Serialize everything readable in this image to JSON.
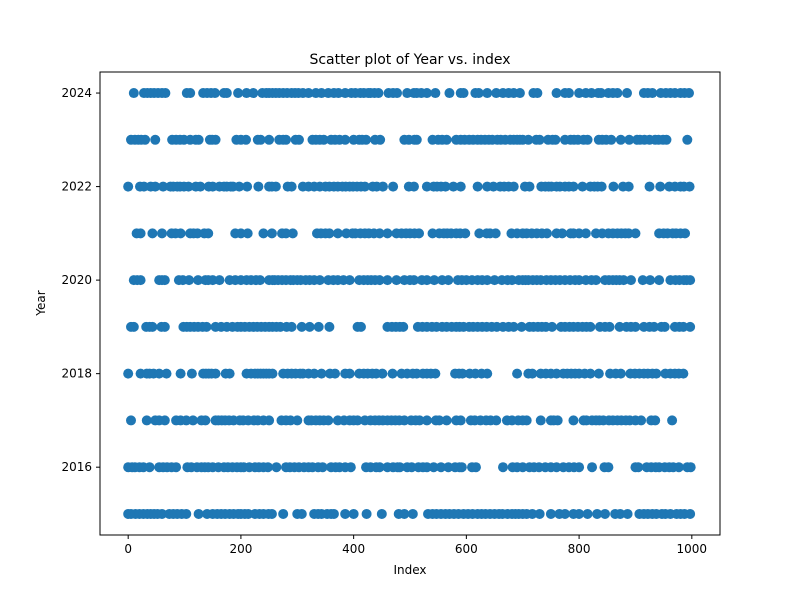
{
  "chart_data": {
    "type": "scatter",
    "title": "Scatter plot of Year vs. index",
    "xlabel": "Index",
    "ylabel": "Year",
    "xlim": [
      -50,
      1050
    ],
    "ylim": [
      2014.55,
      2024.45
    ],
    "x_ticks": [
      0,
      200,
      400,
      600,
      800,
      1000
    ],
    "y_ticks": [
      2016,
      2018,
      2020,
      2022,
      2024
    ],
    "grid": false,
    "legend": "none",
    "marker_color": "#1f77b4",
    "series": [
      {
        "points": [
          {
            "y": 2024,
            "x": [
              10,
              28,
              34,
              40,
              46,
              53,
              60,
              66,
              104,
              110,
              133,
              140,
              147,
              154,
              170,
              175,
              195,
              210,
              222,
              238,
              245,
              250,
              256,
              262,
              268,
              275,
              282,
              290,
              296,
              302,
              310,
              320,
              333,
              343,
              355,
              365,
              373,
              385,
              396,
              403,
              412,
              418,
              426,
              430,
              437,
              444,
              462,
              470,
              477,
              495,
              507,
              512,
              520,
              530,
              545,
              570,
              590,
              595,
              616,
              622,
              637,
              653,
              665,
              675,
              684,
              695,
              719,
              726,
              760,
              775,
              782,
              800,
              812,
              822,
              834,
              839,
              852,
              860,
              868,
              885,
              915,
              922,
              930,
              945,
              954,
              962,
              970,
              980,
              987,
              995
            ]
          },
          {
            "y": 2023,
            "x": [
              5,
              12,
              18,
              23,
              30,
              48,
              78,
              85,
              92,
              99,
              110,
              120,
              125,
              145,
              149,
              155,
              192,
              200,
              209,
              230,
              235,
              250,
              268,
              275,
              280,
              297,
              303,
              327,
              333,
              340,
              347,
              360,
              367,
              375,
              385,
              400,
              410,
              415,
              422,
              438,
              447,
              490,
              498,
              508,
              512,
              540,
              550,
              557,
              565,
              582,
              590,
              597,
              605,
              612,
              620,
              626,
              633,
              640,
              646,
              655,
              661,
              669,
              678,
              684,
              690,
              695,
              700,
              710,
              724,
              730,
              745,
              753,
              758,
              775,
              785,
              791,
              798,
              808,
              815,
              835,
              841,
              848,
              857,
              874,
              889,
              903,
              908,
              916,
              925,
              935,
              941,
              949,
              955,
              992
            ]
          },
          {
            "y": 2022,
            "x": [
              0,
              21,
              28,
              40,
              48,
              62,
              75,
              80,
              87,
              92,
              99,
              107,
              120,
              128,
              143,
              150,
              162,
              170,
              175,
              182,
              186,
              197,
              211,
              231,
              250,
              255,
              262,
              283,
              290,
              310,
              320,
              330,
              340,
              350,
              357,
              365,
              372,
              380,
              386,
              393,
              399,
              406,
              413,
              420,
              434,
              441,
              452,
              470,
              498,
              507,
              530,
              542,
              548,
              555,
              563,
              577,
              590,
              620,
              637,
              648,
              660,
              667,
              675,
              684,
              704,
              712,
              733,
              740,
              746,
              751,
              760,
              766,
              775,
              782,
              790,
              806,
              820,
              827,
              833,
              840,
              861,
              878,
              888,
              925,
              944,
              960,
              970,
              980,
              986,
              996
            ]
          },
          {
            "y": 2021,
            "x": [
              15,
              22,
              43,
              60,
              77,
              84,
              93,
              110,
              116,
              123,
              135,
              142,
              190,
              200,
              212,
              240,
              255,
              273,
              280,
              292,
              335,
              342,
              350,
              357,
              372,
              387,
              398,
              403,
              412,
              420,
              427,
              436,
              446,
              460,
              476,
              485,
              493,
              500,
              508,
              516,
              540,
              552,
              560,
              566,
              573,
              582,
              589,
              598,
              623,
              636,
              642,
              652,
              680,
              690,
              700,
              707,
              716,
              725,
              734,
              743,
              760,
              770,
              785,
              790,
              800,
              812,
              830,
              841,
              852,
              860,
              868,
              875,
              882,
              888,
              900,
              942,
              950,
              957,
              966,
              972,
              980,
              988
            ]
          },
          {
            "y": 2020,
            "x": [
              10,
              16,
              22,
              55,
              60,
              65,
              90,
              97,
              108,
              124,
              137,
              142,
              150,
              162,
              180,
              190,
              200,
              210,
              218,
              227,
              234,
              250,
              256,
              260,
              266,
              273,
              280,
              288,
              293,
              300,
              306,
              315,
              322,
              330,
              340,
              355,
              364,
              372,
              382,
              393,
              410,
              418,
              425,
              431,
              438,
              446,
              460,
              476,
              490,
              500,
              507,
              521,
              530,
              543,
              557,
              568,
              585,
              592,
              600,
              610,
              620,
              628,
              637,
              650,
              663,
              673,
              681,
              693,
              700,
              705,
              710,
              718,
              725,
              732,
              742,
              750,
              758,
              766,
              775,
              784,
              793,
              800,
              812,
              822,
              830,
              846,
              853,
              860,
              866,
              872,
              879,
              892,
              913,
              926,
              942,
              962,
              971,
              978,
              986,
              991,
              997
            ]
          },
          {
            "y": 2019,
            "x": [
              5,
              10,
              32,
              38,
              43,
              59,
              65,
              98,
              104,
              110,
              117,
              124,
              132,
              139,
              155,
              165,
              175,
              185,
              194,
              200,
              207,
              215,
              222,
              229,
              236,
              243,
              250,
              256,
              263,
              270,
              281,
              290,
              308,
              322,
              338,
              357,
              407,
              413,
              460,
              468,
              475,
              482,
              488,
              514,
              522,
              530,
              539,
              547,
              557,
              565,
              574,
              582,
              588,
              595,
              605,
              612,
              620,
              628,
              636,
              645,
              654,
              665,
              675,
              684,
              698,
              712,
              719,
              727,
              734,
              741,
              752,
              768,
              775,
              783,
              790,
              798,
              806,
              813,
              820,
              837,
              846,
              854,
              872,
              884,
              892,
              900,
              915,
              925,
              933,
              946,
              952,
              970,
              978,
              985,
              997
            ]
          },
          {
            "y": 2018,
            "x": [
              0,
              22,
              33,
              38,
              45,
              55,
              68,
              93,
              113,
              133,
              138,
              143,
              148,
              155,
              173,
              180,
              210,
              218,
              225,
              230,
              235,
              240,
              245,
              250,
              256,
              275,
              283,
              290,
              297,
              305,
              310,
              320,
              330,
              343,
              358,
              367,
              385,
              393,
              410,
              418,
              425,
              433,
              440,
              451,
              469,
              485,
              495,
              505,
              512,
              523,
              530,
              537,
              545,
              580,
              587,
              593,
              606,
              616,
              627,
              637,
              690,
              710,
              717,
              732,
              741,
              750,
              760,
              772,
              779,
              786,
              793,
              800,
              810,
              820,
              835,
              855,
              865,
              874,
              891,
              899,
              907,
              915,
              922,
              930,
              937,
              953,
              962,
              970,
              977,
              985
            ]
          },
          {
            "y": 2017,
            "x": [
              5,
              33,
              48,
              55,
              65,
              85,
              93,
              103,
              115,
              130,
              137,
              155,
              160,
              166,
              172,
              179,
              187,
              198,
              204,
              213,
              223,
              230,
              240,
              250,
              272,
              280,
              288,
              300,
              320,
              325,
              333,
              340,
              347,
              355,
              372,
              383,
              393,
              400,
              407,
              420,
              430,
              438,
              445,
              452,
              460,
              467,
              474,
              481,
              490,
              502,
              510,
              517,
              530,
              546,
              552,
              565,
              582,
              590,
              608,
              615,
              625,
              635,
              643,
              653,
              672,
              681,
              692,
              700,
              707,
              732,
              750,
              755,
              762,
              790,
              808,
              813,
              823,
              830,
              836,
              843,
              853,
              860,
              868,
              875,
              883,
              890,
              900,
              910,
              928,
              935,
              965
            ]
          },
          {
            "y": 2016,
            "x": [
              0,
              7,
              12,
              20,
              27,
              38,
              55,
              62,
              69,
              77,
              85,
              105,
              112,
              122,
              130,
              136,
              142,
              150,
              160,
              170,
              177,
              185,
              193,
              200,
              205,
              215,
              225,
              232,
              240,
              248,
              263,
              280,
              287,
              295,
              303,
              312,
              320,
              327,
              337,
              345,
              360,
              368,
              375,
              385,
              395,
              422,
              430,
              440,
              446,
              460,
              470,
              478,
              482,
              495,
              503,
              515,
              523,
              530,
              542,
              555,
              568,
              580,
              588,
              592,
              610,
              617,
              665,
              682,
              690,
              700,
              712,
              720,
              729,
              740,
              750,
              760,
              772,
              782,
              791,
              800,
              823,
              845,
              852,
              900,
              905,
              920,
              928,
              936,
              942,
              952,
              960,
              967,
              977,
              992,
              998
            ]
          },
          {
            "y": 2015,
            "x": [
              0,
              5,
              13,
              20,
              27,
              34,
              40,
              46,
              52,
              60,
              73,
              80,
              87,
              95,
              103,
              125,
              140,
              150,
              158,
              165,
              172,
              180,
              187,
              195,
              200,
              207,
              213,
              225,
              233,
              240,
              249,
              255,
              275,
              300,
              308,
              330,
              337,
              343,
              353,
              360,
              365,
              385,
              400,
              423,
              450,
              480,
              490,
              505,
              532,
              540,
              547,
              555,
              563,
              570,
              578,
              586,
              595,
              603,
              611,
              620,
              627,
              634,
              642,
              650,
              658,
              664,
              673,
              681,
              687,
              693,
              700,
              707,
              717,
              730,
              750,
              765,
              775,
              790,
              800,
              815,
              832,
              846,
              864,
              873,
              886,
              907,
              915,
              922,
              930,
              937,
              947,
              953,
              962,
              973,
              980,
              987,
              997
            ]
          }
        ]
      }
    ]
  }
}
